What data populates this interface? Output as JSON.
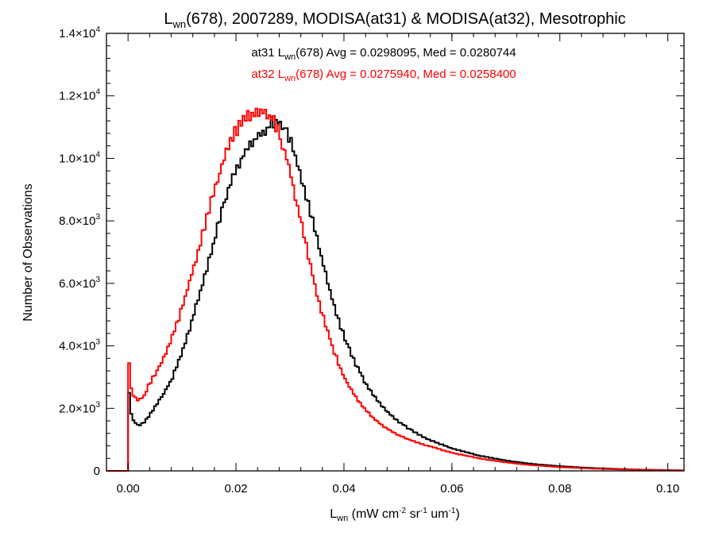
{
  "chart_data": {
    "type": "line",
    "title": {
      "pre": "L",
      "sub": "wn",
      "post": "(678), 2007289, MODISA(at31) & MODISA(at32), Mesotrophic"
    },
    "xlabel": {
      "pre": "L",
      "sub": "wn",
      "unit_text": "(mW cm-2 sr-1 um-1)"
    },
    "ylabel": "Number of Observations",
    "xlim": [
      -0.004,
      0.103
    ],
    "ylim": [
      0,
      14000
    ],
    "x_ticks": [
      {
        "value": 0.0,
        "label": "0.00"
      },
      {
        "value": 0.02,
        "label": "0.02"
      },
      {
        "value": 0.04,
        "label": "0.04"
      },
      {
        "value": 0.06,
        "label": "0.06"
      },
      {
        "value": 0.08,
        "label": "0.08"
      },
      {
        "value": 0.1,
        "label": "0.10"
      }
    ],
    "y_ticks": [
      {
        "value": 0,
        "mantissa": "0",
        "exponent": ""
      },
      {
        "value": 2000,
        "mantissa": "2.0×10",
        "exponent": "3"
      },
      {
        "value": 4000,
        "mantissa": "4.0×10",
        "exponent": "3"
      },
      {
        "value": 6000,
        "mantissa": "6.0×10",
        "exponent": "3"
      },
      {
        "value": 8000,
        "mantissa": "8.0×10",
        "exponent": "3"
      },
      {
        "value": 10000,
        "mantissa": "1.0×10",
        "exponent": "4"
      },
      {
        "value": 12000,
        "mantissa": "1.2×10",
        "exponent": "4"
      },
      {
        "value": 14000,
        "mantissa": "1.4×10",
        "exponent": "4"
      }
    ],
    "legend": [
      {
        "series": "at31",
        "pre": "at31 L",
        "sub": "wn",
        "post": "(678) Avg = 0.0298095, Med = 0.0280744",
        "color": "#000000"
      },
      {
        "series": "at32",
        "pre": "at32 L",
        "sub": "wn",
        "post": "(678) Avg = 0.0275940, Med = 0.0258400",
        "color": "#ff0000"
      }
    ],
    "series": [
      {
        "name": "at31",
        "color": "#000000",
        "x": [
          -0.004,
          -0.0002,
          0.0,
          0.0002,
          0.0005,
          0.001,
          0.002,
          0.003,
          0.004,
          0.006,
          0.008,
          0.01,
          0.012,
          0.014,
          0.016,
          0.018,
          0.02,
          0.022,
          0.024,
          0.026,
          0.027,
          0.028,
          0.03,
          0.032,
          0.034,
          0.036,
          0.038,
          0.04,
          0.042,
          0.044,
          0.046,
          0.048,
          0.05,
          0.052,
          0.055,
          0.06,
          0.065,
          0.07,
          0.075,
          0.08,
          0.085,
          0.09,
          0.095,
          0.1,
          0.103
        ],
        "y": [
          0,
          0,
          2000,
          2500,
          1900,
          1600,
          1450,
          1550,
          1800,
          2300,
          2900,
          3800,
          4900,
          6100,
          7400,
          8700,
          9600,
          10300,
          10700,
          11000,
          11200,
          11200,
          10600,
          9500,
          8100,
          6700,
          5400,
          4300,
          3500,
          2800,
          2300,
          1900,
          1600,
          1350,
          1050,
          720,
          490,
          330,
          220,
          150,
          100,
          65,
          40,
          25,
          15
        ]
      },
      {
        "name": "at32",
        "color": "#ff0000",
        "x": [
          -0.004,
          -0.0002,
          0.0,
          0.0002,
          0.0004,
          0.001,
          0.002,
          0.003,
          0.004,
          0.006,
          0.008,
          0.01,
          0.012,
          0.014,
          0.016,
          0.018,
          0.02,
          0.022,
          0.024,
          0.025,
          0.026,
          0.028,
          0.03,
          0.032,
          0.034,
          0.036,
          0.038,
          0.04,
          0.042,
          0.044,
          0.046,
          0.048,
          0.05,
          0.052,
          0.055,
          0.06,
          0.065,
          0.07,
          0.075,
          0.08,
          0.085,
          0.09,
          0.095,
          0.1,
          0.103
        ],
        "y": [
          0,
          0,
          2600,
          3450,
          2700,
          2400,
          2250,
          2400,
          2800,
          3400,
          4200,
          5200,
          6400,
          7700,
          9000,
          10100,
          10900,
          11300,
          11500,
          11600,
          11400,
          10900,
          9600,
          8000,
          6400,
          5000,
          3900,
          3000,
          2400,
          1950,
          1600,
          1350,
          1150,
          1000,
          830,
          580,
          400,
          270,
          180,
          120,
          80,
          52,
          32,
          20,
          12
        ]
      }
    ]
  }
}
